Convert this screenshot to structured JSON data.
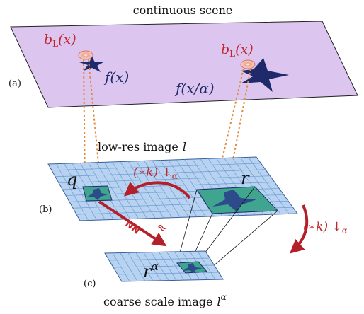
{
  "scene": {
    "title": "continuous scene",
    "panel": "(a)",
    "blur_left": {
      "base": "b",
      "sub": "L",
      "arg": "(x)"
    },
    "blur_right": {
      "base": "b",
      "sub": "L",
      "arg": "(x)"
    },
    "object_left": "f(x)",
    "object_right": "f(x/α)"
  },
  "lowres": {
    "panel": "(b)",
    "label": "low-res image",
    "symbol": "l",
    "patch_q": "q",
    "patch_r": "r",
    "op_top": {
      "base": "(∗k) ↓",
      "sub": "α"
    },
    "op_side": {
      "base": "(∗k) ↓",
      "sub": "α"
    },
    "nn": "NN",
    "approx": "≈"
  },
  "coarse": {
    "panel": "(c)",
    "label": "coarse scale image",
    "symbol": "l",
    "sup": "α",
    "patch": "r",
    "patch_sup": "α"
  }
}
